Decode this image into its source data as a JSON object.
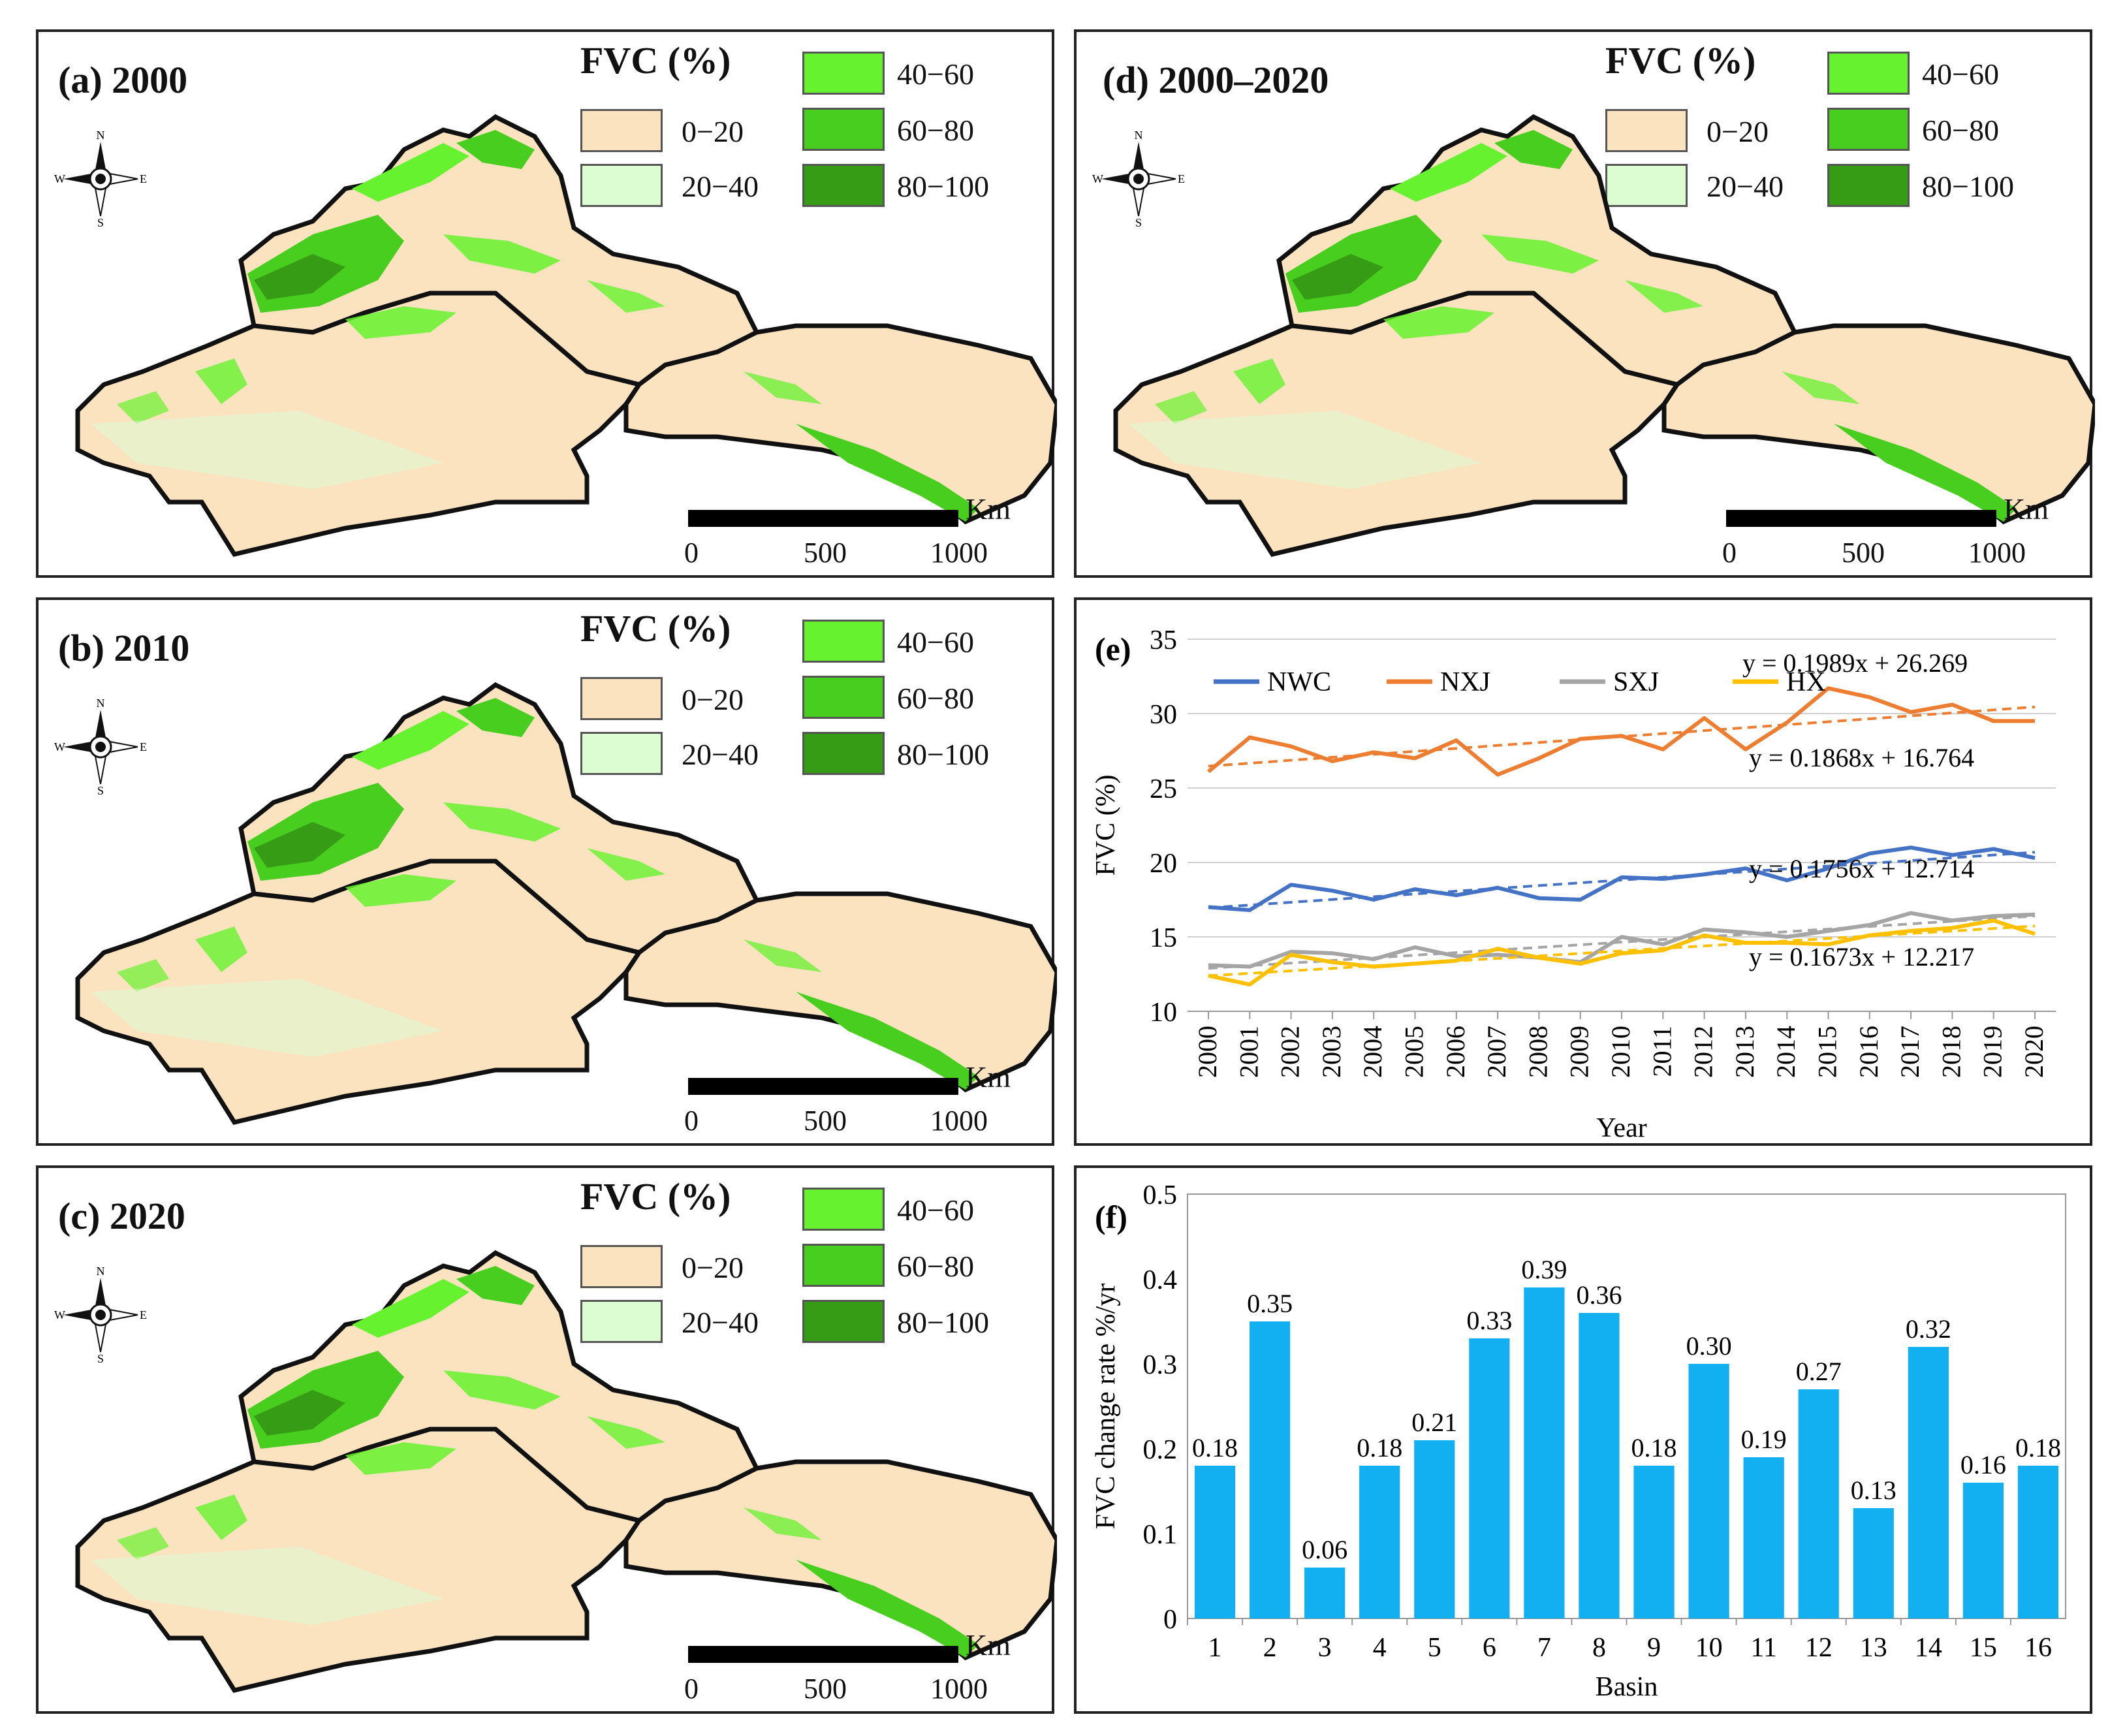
{
  "map_legend": {
    "title": "FVC (%)",
    "classes": [
      {
        "label": "0−20",
        "color": "#fbe3c0"
      },
      {
        "label": "20−40",
        "color": "#dcfcd2"
      },
      {
        "label": "40−60",
        "color": "#66f22e"
      },
      {
        "label": "60−80",
        "color": "#47ce1e"
      },
      {
        "label": "80−100",
        "color": "#369c15"
      }
    ],
    "scale_unit": "Km",
    "scale_ticks": [
      "0",
      "500",
      "1000"
    ],
    "compass": {
      "n": "N",
      "s": "S",
      "e": "E",
      "w": "W"
    }
  },
  "panels": {
    "a": {
      "title": "(a) 2000"
    },
    "b": {
      "title": "(b) 2010"
    },
    "c": {
      "title": "(c) 2020"
    },
    "d": {
      "title": "(d) 2000–2020"
    }
  },
  "chart_data": [
    {
      "id": "e",
      "type": "line",
      "label": "(e)",
      "xlabel": "Year",
      "ylabel": "FVC (%)",
      "ylim": [
        10,
        35
      ],
      "yticks": [
        10,
        15,
        20,
        25,
        30,
        35
      ],
      "x": [
        "2000",
        "2001",
        "2002",
        "2003",
        "2004",
        "2005",
        "2006",
        "2007",
        "2008",
        "2009",
        "2010",
        "2011",
        "2012",
        "2013",
        "2014",
        "2015",
        "2016",
        "2017",
        "2018",
        "2019",
        "2020"
      ],
      "series": [
        {
          "name": "NWC",
          "color": "#4472c4",
          "values": [
            17.0,
            16.8,
            18.5,
            18.1,
            17.5,
            18.2,
            17.8,
            18.3,
            17.6,
            17.5,
            19.0,
            18.9,
            19.2,
            19.6,
            18.8,
            19.6,
            20.6,
            21.0,
            20.5,
            20.9,
            20.3
          ],
          "trend": {
            "slope": 0.1868,
            "intercept": 16.764,
            "equation": "y = 0.1868x + 16.764"
          }
        },
        {
          "name": "NXJ",
          "color": "#ed7d31",
          "values": [
            26.1,
            28.4,
            27.8,
            26.8,
            27.4,
            27.0,
            28.2,
            25.9,
            27.0,
            28.3,
            28.5,
            27.6,
            29.7,
            27.6,
            29.4,
            31.7,
            31.1,
            30.1,
            30.6,
            29.5,
            29.5
          ],
          "trend": {
            "slope": 0.1989,
            "intercept": 26.269,
            "equation": "y = 0.1989x + 26.269"
          }
        },
        {
          "name": "SXJ",
          "color": "#a5a5a5",
          "values": [
            13.1,
            13.0,
            14.0,
            13.9,
            13.5,
            14.3,
            13.7,
            13.8,
            13.6,
            13.3,
            15.0,
            14.5,
            15.5,
            15.3,
            15.0,
            15.4,
            15.8,
            16.6,
            16.1,
            16.4,
            16.5
          ],
          "trend": {
            "slope": 0.1756,
            "intercept": 12.714,
            "equation": "y = 0.1756x + 12.714"
          }
        },
        {
          "name": "HX",
          "color": "#ffc000",
          "values": [
            12.4,
            11.8,
            13.8,
            13.3,
            13.0,
            13.2,
            13.4,
            14.2,
            13.6,
            13.2,
            13.9,
            14.1,
            15.1,
            14.6,
            14.6,
            14.5,
            15.1,
            15.4,
            15.6,
            16.1,
            15.2
          ],
          "trend": {
            "slope": 0.1673,
            "intercept": 12.217,
            "equation": "y = 0.1673x + 12.217"
          }
        }
      ]
    },
    {
      "id": "f",
      "type": "bar",
      "label": "(f)",
      "xlabel": "Basin",
      "ylabel": "FVC change rate %/yr",
      "ylim": [
        0,
        0.5
      ],
      "yticks": [
        "0",
        "0.1",
        "0.2",
        "0.3",
        "0.4",
        "0.5"
      ],
      "bar_color": "#12b0f0",
      "categories": [
        "1",
        "2",
        "3",
        "4",
        "5",
        "6",
        "7",
        "8",
        "9",
        "10",
        "11",
        "12",
        "13",
        "14",
        "15",
        "16"
      ],
      "values": [
        0.18,
        0.35,
        0.06,
        0.18,
        0.21,
        0.33,
        0.39,
        0.36,
        0.18,
        0.3,
        0.19,
        0.27,
        0.13,
        0.32,
        0.16,
        0.18
      ],
      "labels": [
        "0.18",
        "0.35",
        "0.06",
        "0.18",
        "0.21",
        "0.33",
        "0.39",
        "0.36",
        "0.18",
        "0.30",
        "0.19",
        "0.27",
        "0.13",
        "0.32",
        "0.16",
        "0.18"
      ]
    }
  ]
}
